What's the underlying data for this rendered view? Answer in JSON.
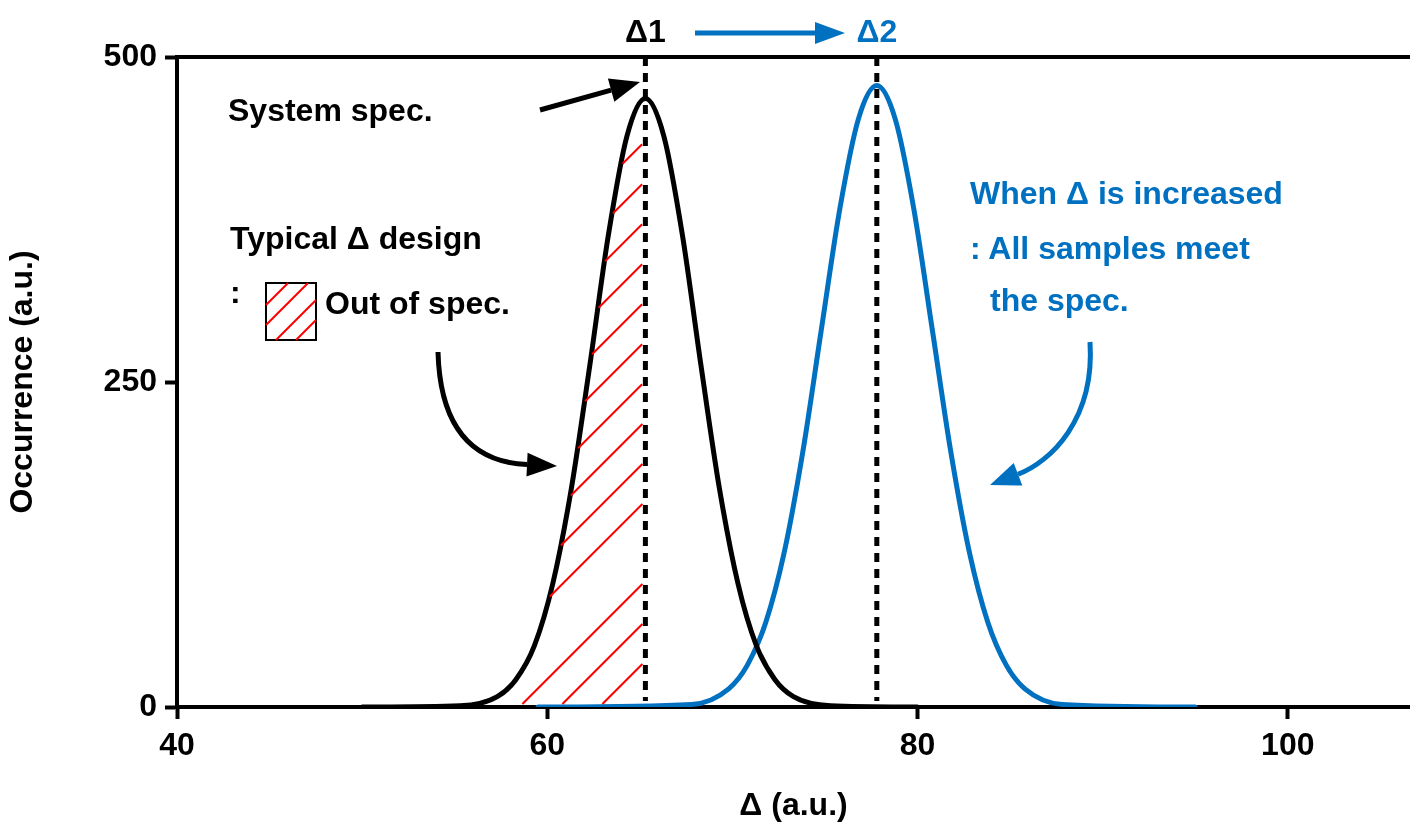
{
  "chart_data": {
    "type": "line",
    "xlabel": "Δ (a.u.)",
    "ylabel": "Occurrence (a.u.)",
    "xlim": [
      40,
      106.6
    ],
    "xticks": [
      40,
      60,
      80,
      100
    ],
    "ylim": [
      0,
      500
    ],
    "yticks": [
      0,
      250,
      500
    ],
    "grid": false,
    "legend": false,
    "marker": "none",
    "line_style": "solid",
    "series": [
      {
        "color": "#000000",
        "x": [
          50,
          55.3,
          57.3,
          58.3,
          59.3,
          60.3,
          61.3,
          62.3,
          63.3,
          64.3,
          65.3,
          66.3,
          67.3,
          68.3,
          69.3,
          70.3,
          71.3,
          72.3,
          73.3,
          75.3,
          80
        ],
        "values": [
          0,
          1,
          8,
          21,
          47,
          95,
          168,
          263,
          363,
          439,
          468,
          439,
          363,
          263,
          168,
          95,
          47,
          21,
          8,
          1,
          0
        ]
      },
      {
        "color": "#0070c0",
        "x": [
          59.5,
          67.8,
          69.8,
          70.8,
          71.8,
          72.8,
          73.8,
          74.8,
          75.8,
          76.8,
          77.8,
          78.8,
          79.8,
          80.8,
          81.8,
          82.8,
          83.8,
          84.8,
          85.8,
          87.8,
          95
        ],
        "values": [
          0,
          2,
          14,
          32,
          65,
          119,
          196,
          290,
          383,
          452,
          478,
          452,
          383,
          290,
          196,
          119,
          65,
          32,
          14,
          2,
          0
        ]
      }
    ],
    "ref_lines": [
      {
        "axis": "x",
        "value": 65.3,
        "label": "Δ1",
        "color": "#000000",
        "line_style": "dashed"
      },
      {
        "axis": "x",
        "value": 77.8,
        "label": "Δ2",
        "color": "#000000",
        "line_style": "dashed"
      }
    ],
    "annotations": [
      "System spec.",
      "Typical Δ design",
      ":",
      "Out of spec.",
      "When Δ is increased",
      ": All samples meet",
      "the spec."
    ]
  }
}
